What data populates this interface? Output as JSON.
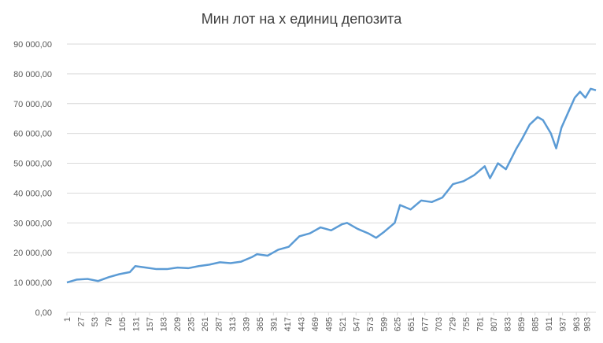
{
  "chart_data": {
    "type": "line",
    "title": "Мин лот на x единиц депозита",
    "x": [
      1,
      20,
      40,
      60,
      80,
      100,
      120,
      130,
      150,
      170,
      190,
      210,
      230,
      250,
      270,
      290,
      310,
      330,
      350,
      360,
      380,
      400,
      420,
      440,
      460,
      480,
      500,
      520,
      530,
      550,
      570,
      585,
      600,
      620,
      630,
      650,
      670,
      690,
      710,
      730,
      750,
      770,
      790,
      800,
      815,
      830,
      850,
      860,
      875,
      890,
      900,
      915,
      925,
      935,
      945,
      960,
      970,
      980,
      990,
      1000
    ],
    "values": [
      10000,
      11000,
      11200,
      10500,
      11800,
      12800,
      13500,
      15500,
      15000,
      14500,
      14500,
      15000,
      14800,
      15500,
      16000,
      16800,
      16500,
      17000,
      18500,
      19500,
      19000,
      21000,
      22000,
      25500,
      26500,
      28500,
      27500,
      29500,
      30000,
      28000,
      26500,
      25000,
      27000,
      30000,
      36000,
      34500,
      37500,
      37000,
      38500,
      43000,
      44000,
      46000,
      49000,
      45000,
      50000,
      48000,
      55000,
      58000,
      63000,
      65500,
      64500,
      60000,
      55000,
      62000,
      66000,
      72000,
      74000,
      72000,
      75000,
      74500
    ],
    "color": "#5b9bd5",
    "xlim": [
      1,
      1000
    ],
    "xticks": [
      1,
      27,
      53,
      79,
      105,
      131,
      157,
      183,
      209,
      235,
      261,
      287,
      313,
      339,
      365,
      391,
      417,
      443,
      469,
      495,
      521,
      547,
      573,
      599,
      625,
      651,
      677,
      703,
      729,
      755,
      781,
      807,
      833,
      859,
      885,
      911,
      937,
      963,
      983
    ],
    "ylim": [
      0,
      90000
    ],
    "yticks": [
      {
        "value": 0,
        "label": "0,00"
      },
      {
        "value": 10000,
        "label": "10 000,00"
      },
      {
        "value": 20000,
        "label": "20 000,00"
      },
      {
        "value": 30000,
        "label": "30 000,00"
      },
      {
        "value": 40000,
        "label": "40 000,00"
      },
      {
        "value": 50000,
        "label": "50 000,00"
      },
      {
        "value": 60000,
        "label": "60 000,00"
      },
      {
        "value": 70000,
        "label": "70 000,00"
      },
      {
        "value": 80000,
        "label": "80 000,00"
      },
      {
        "value": 90000,
        "label": "90 000,00"
      }
    ],
    "grid": true
  }
}
